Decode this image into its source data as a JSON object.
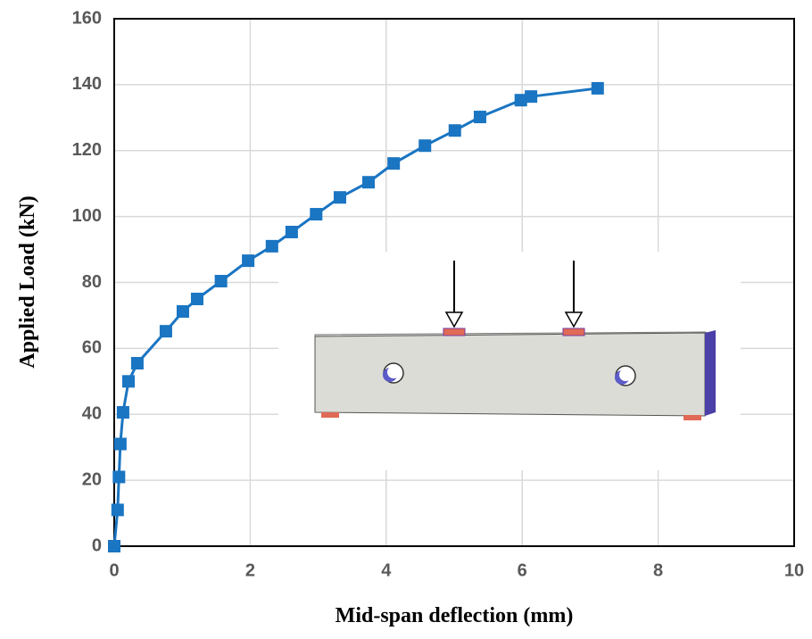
{
  "chart_data": {
    "type": "line",
    "x_label": "Mid-span deflection (mm)",
    "y_label": "Applied Load (kN)",
    "x": [
      0,
      0.05,
      0.07,
      0.09,
      0.13,
      0.21,
      0.34,
      0.76,
      1.01,
      1.22,
      1.57,
      1.97,
      2.32,
      2.61,
      2.97,
      3.32,
      3.74,
      4.11,
      4.57,
      5.01,
      5.38,
      5.98,
      6.13,
      7.11
    ],
    "series": [
      {
        "color": "#1a75c2",
        "values": [
          0,
          11,
          21,
          31,
          40.6,
          50,
          55.5,
          65.2,
          71.2,
          75,
          80.4,
          86.6,
          91,
          95.3,
          100.7,
          105.8,
          110.4,
          116.1,
          121.5,
          126.1,
          130.2,
          135.3,
          136.4,
          138.9
        ]
      }
    ],
    "xlim": [
      0,
      10
    ],
    "xticks": [
      0,
      2,
      4,
      6,
      8,
      10
    ],
    "ylim": [
      0,
      160
    ],
    "yticks": [
      0,
      20,
      40,
      60,
      80,
      100,
      120,
      140,
      160
    ],
    "grid": true
  }
}
